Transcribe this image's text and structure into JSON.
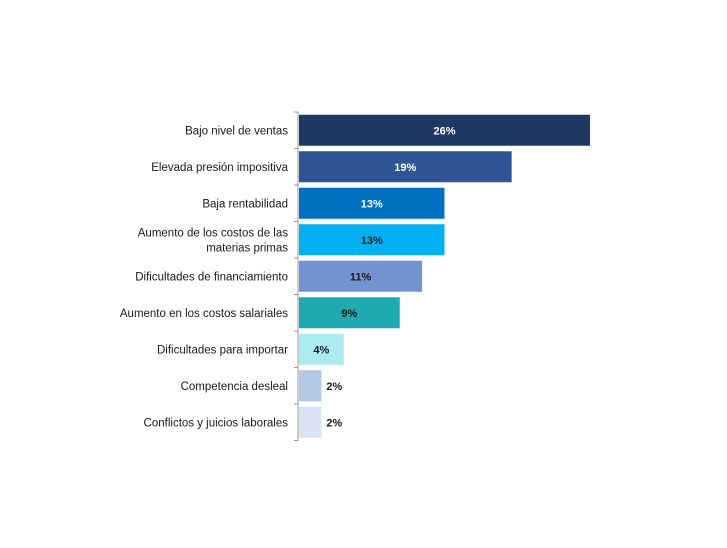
{
  "chart_data": {
    "type": "bar",
    "orientation": "horizontal",
    "title": "",
    "xlabel": "",
    "ylabel": "",
    "xlim": [
      0,
      26
    ],
    "grid": false,
    "legend": "none",
    "categories": [
      "Bajo nivel de ventas",
      "Elevada presión impositiva",
      "Baja rentabilidad",
      "Aumento de los costos de las materias primas",
      "Dificultades de financiamiento",
      "Aumento en los costos salariales",
      "Dificultades para importar",
      "Competencia desleal",
      "Conflictos y juicios laborales"
    ],
    "category_lines": [
      [
        "Bajo nivel de ventas"
      ],
      [
        "Elevada presión impositiva"
      ],
      [
        "Baja rentabilidad"
      ],
      [
        "Aumento de los costos de las",
        "materias primas"
      ],
      [
        "Dificultades de financiamiento"
      ],
      [
        "Aumento en los costos salariales"
      ],
      [
        "Dificultades para importar"
      ],
      [
        "Competencia desleal"
      ],
      [
        "Conflictos y juicios laborales"
      ]
    ],
    "values": [
      26,
      19,
      13,
      13,
      11,
      9,
      4,
      2,
      2
    ],
    "value_labels": [
      "26%",
      "19%",
      "13%",
      "13%",
      "11%",
      "9%",
      "4%",
      "2%",
      "2%"
    ],
    "colors": [
      "#1f3864",
      "#2f5597",
      "#0070c0",
      "#00b0f0",
      "#7393d0",
      "#1fa9b0",
      "#a9ecf1",
      "#b4c7e7",
      "#dae3f3"
    ],
    "label_colors": [
      "#ffffff",
      "#ffffff",
      "#ffffff",
      "#1a1a1a",
      "#1a1a1a",
      "#1a1a1a",
      "#1a1a1a",
      "#1a1a1a",
      "#1a1a1a"
    ],
    "label_inside": [
      true,
      true,
      true,
      true,
      true,
      true,
      true,
      false,
      false
    ]
  }
}
